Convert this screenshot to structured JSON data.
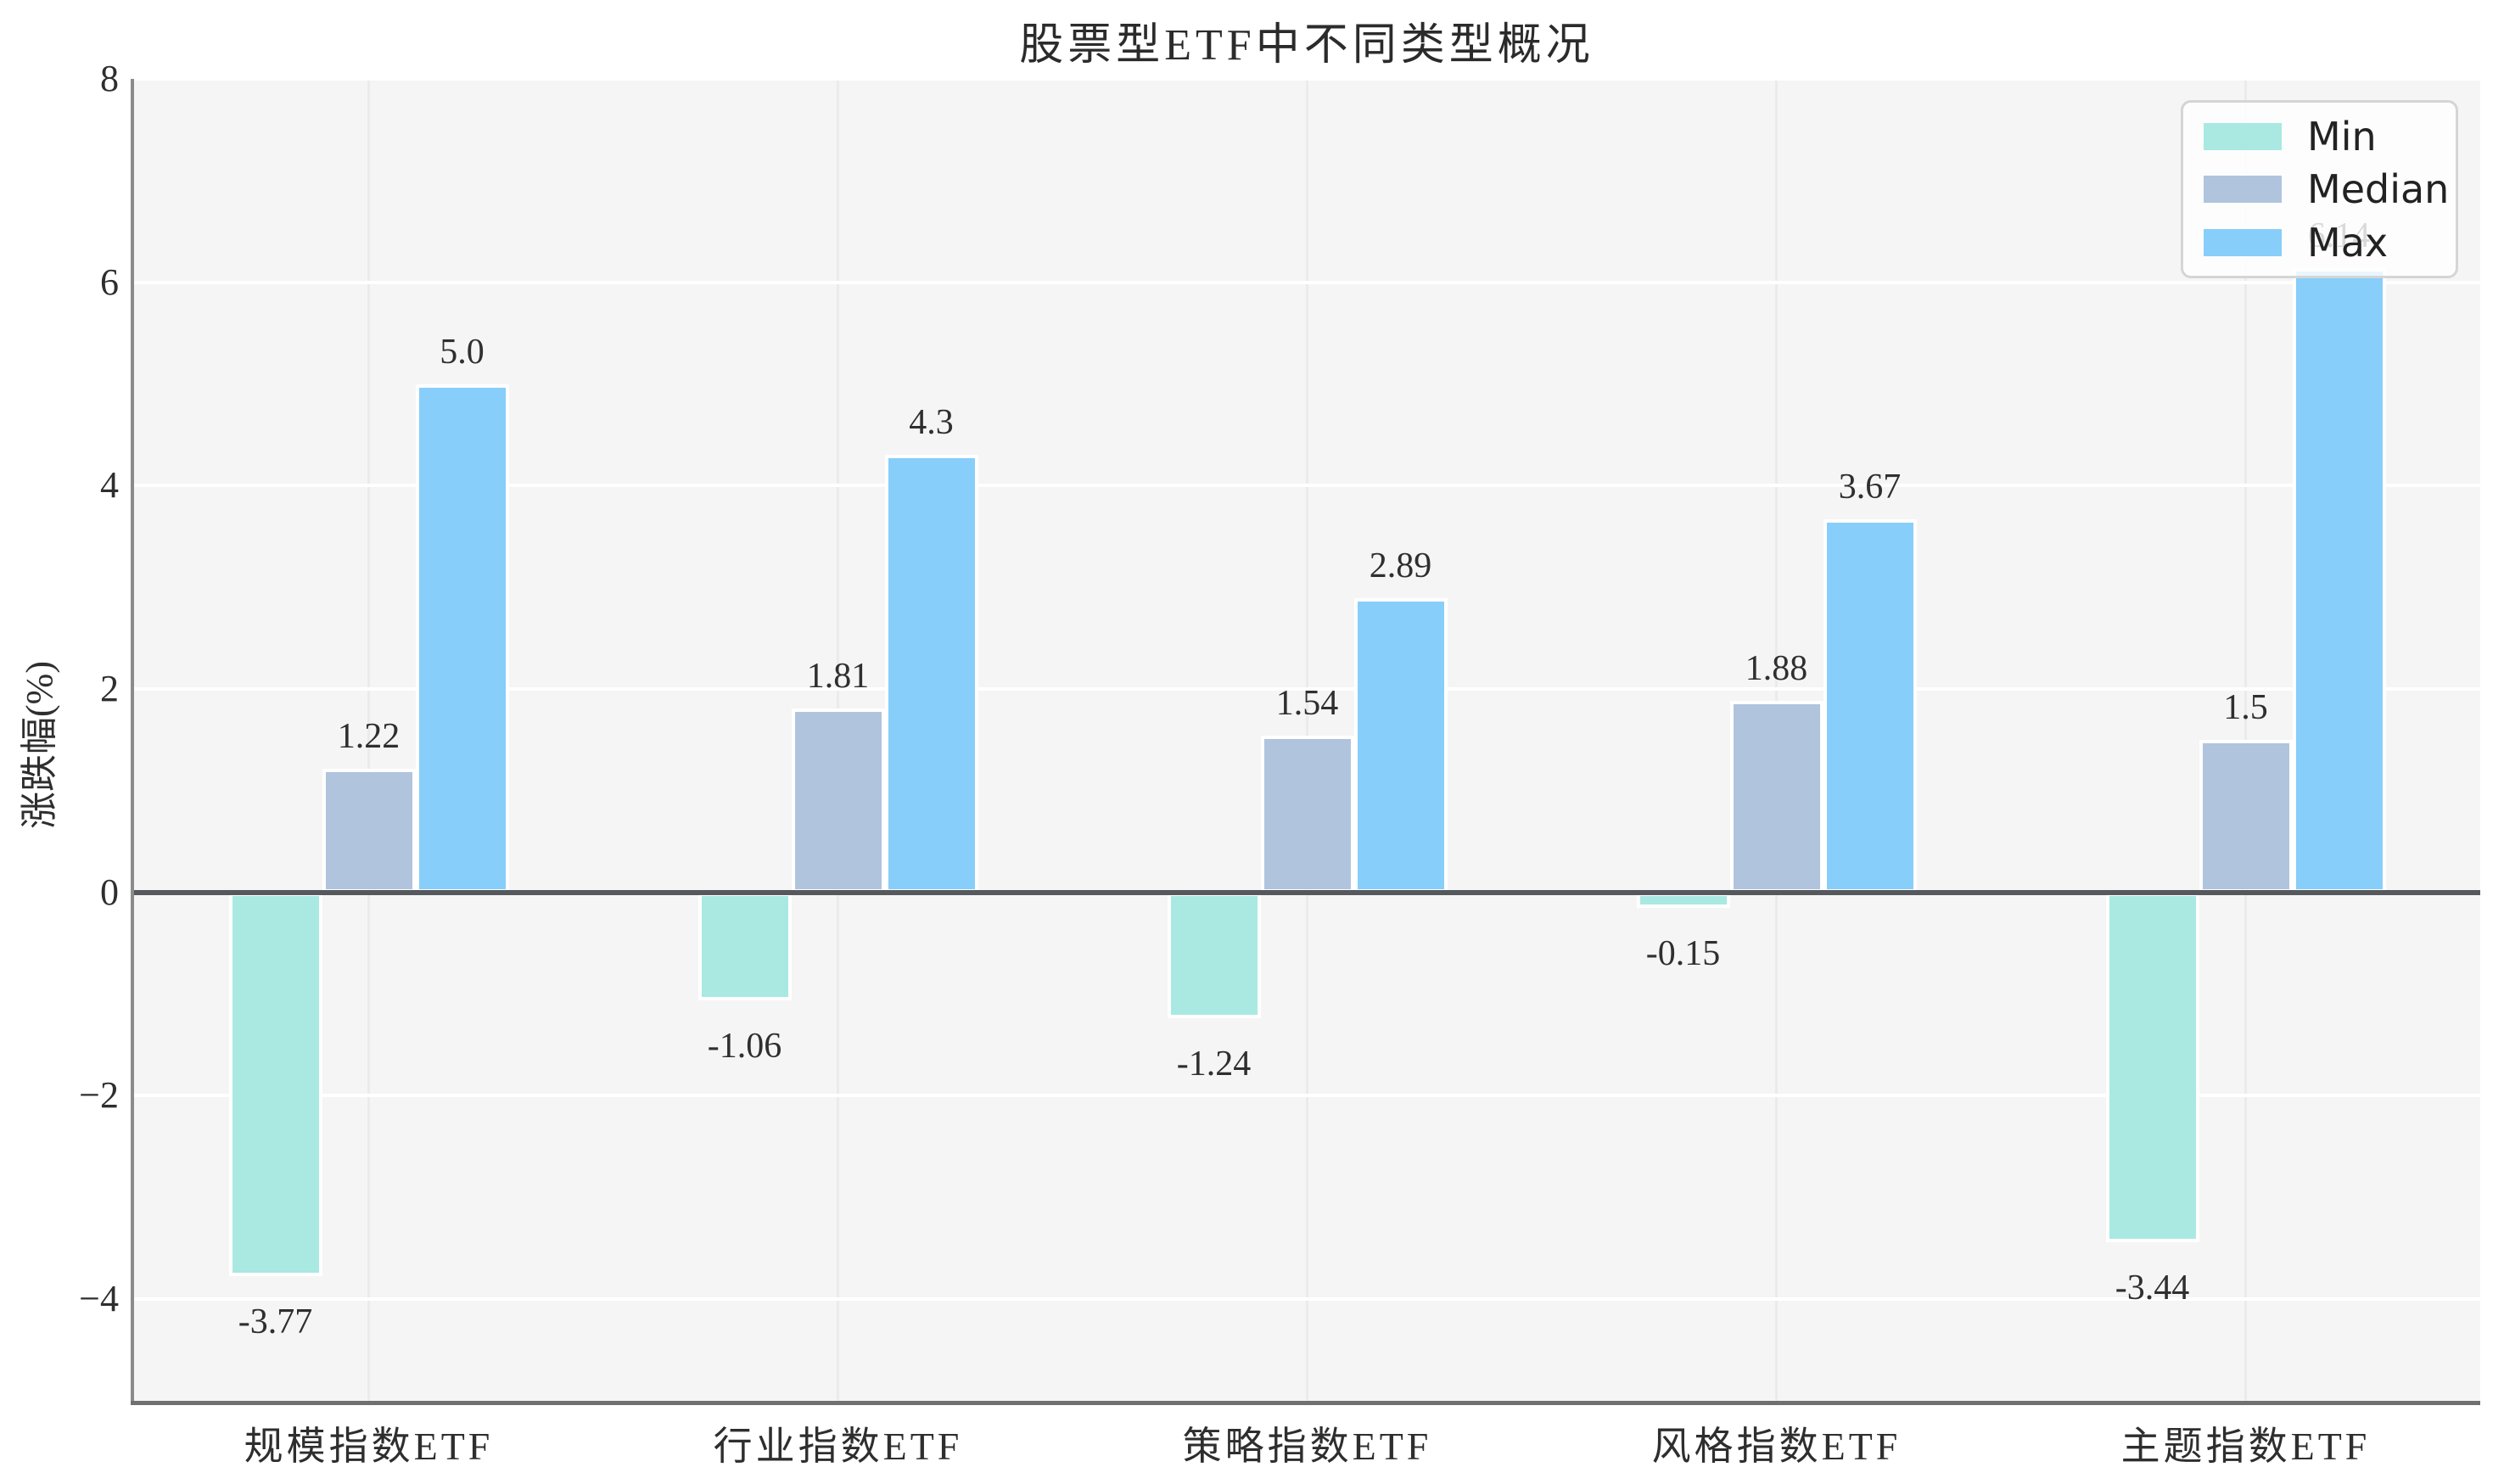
{
  "figure": {
    "title": "股票型ETF中不同类型概况"
  },
  "chart_data": {
    "type": "bar",
    "title": "股票型ETF中不同类型概况",
    "xlabel": "",
    "ylabel": "涨跌幅(%)",
    "categories": [
      "规模指数ETF",
      "行业指数ETF",
      "策略指数ETF",
      "风格指数ETF",
      "主题指数ETF"
    ],
    "series": [
      {
        "name": "Min",
        "color": "#a9e9e2",
        "values": [
          -3.77,
          -1.06,
          -1.24,
          -0.15,
          -3.44
        ],
        "labels": [
          "-3.77",
          "-1.06",
          "-1.24",
          "-0.15",
          "-3.44"
        ]
      },
      {
        "name": "Median",
        "color": "#b0c4de",
        "values": [
          1.22,
          1.81,
          1.54,
          1.88,
          1.5
        ],
        "labels": [
          "1.22",
          "1.81",
          "1.54",
          "1.88",
          "1.5"
        ]
      },
      {
        "name": "Max",
        "color": "#87cefa",
        "values": [
          5.0,
          4.3,
          2.89,
          3.67,
          6.14
        ],
        "labels": [
          "5.0",
          "4.3",
          "2.89",
          "3.67",
          "6.14"
        ]
      }
    ],
    "ylim": [
      -5,
      8
    ],
    "yticks": [
      8,
      6,
      4,
      2,
      0,
      -2,
      -4
    ],
    "ytick_labels": [
      "8",
      "6",
      "4",
      "2",
      "0",
      "−2",
      "−4"
    ],
    "grid": true,
    "legend_position": "upper right",
    "legend_items": [
      "Min",
      "Median",
      "Max"
    ]
  },
  "colors": {
    "plot_bg": "#f5f5f5",
    "grid_horizontal": "#ffffff",
    "grid_vertical": "#ebebeb",
    "zero_line": "#55585c",
    "spine_left": "#8b8b8b",
    "spine_bottom": "#707070",
    "text": "#2e2e2e",
    "min_bar": "#a9e9e2",
    "median_bar": "#b0c4de",
    "max_bar": "#87cefa"
  }
}
